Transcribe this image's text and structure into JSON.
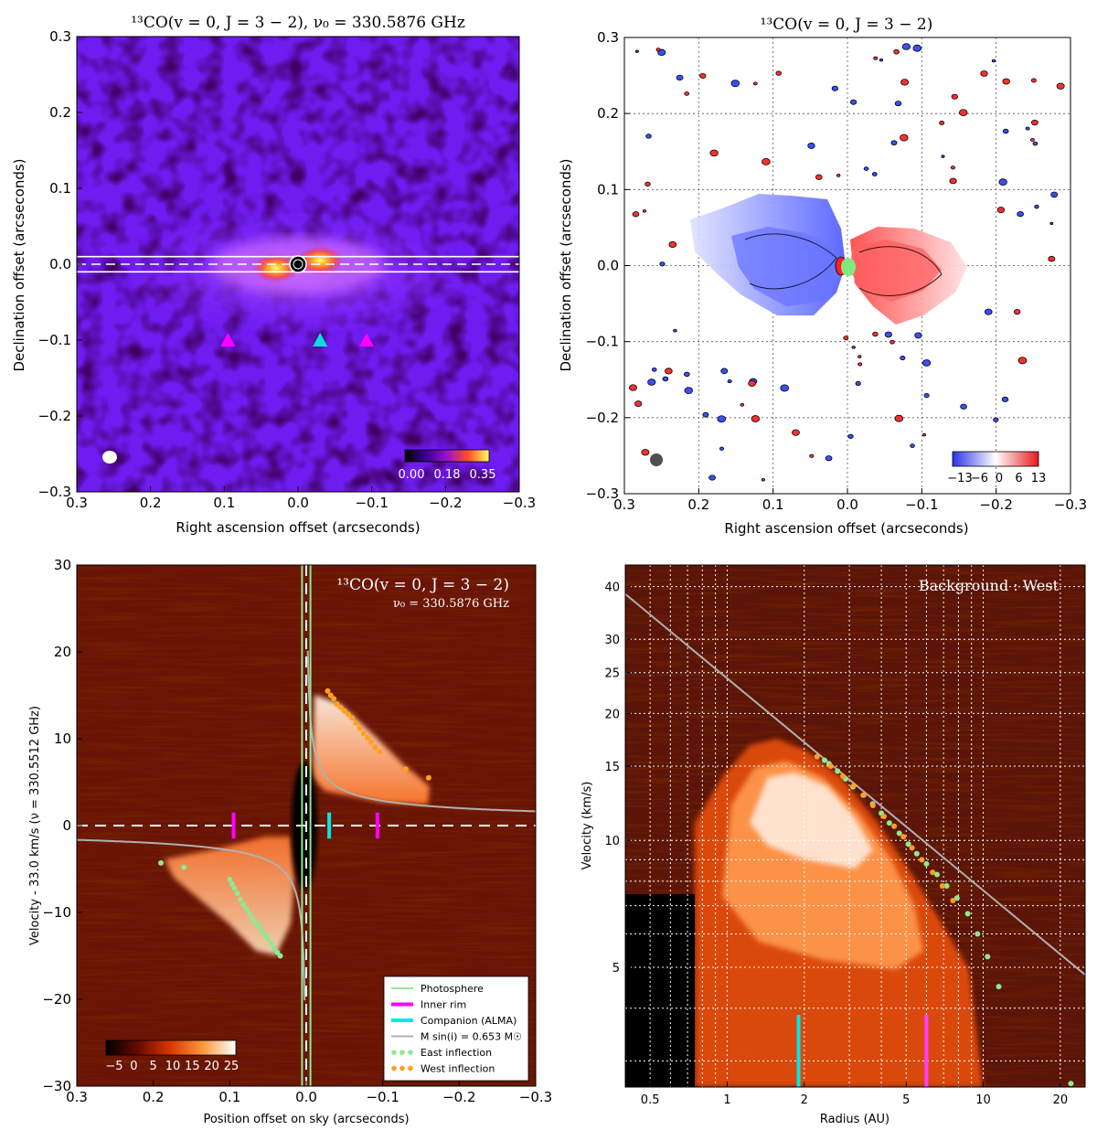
{
  "chart_data": [
    {
      "id": "p1",
      "type": "heatmap",
      "title": "¹³CO(v = 0, J = 3 − 2), ν₀ = 330.5876 GHz",
      "xlabel": "Right ascension offset (arcseconds)",
      "ylabel": "Declination offset (arcseconds)",
      "xlim": [
        0.3,
        -0.3
      ],
      "ylim": [
        -0.3,
        0.3
      ],
      "xticks": [
        "0.3",
        "0.2",
        "0.1",
        "0.0",
        "−0.1",
        "−0.2",
        "−0.3"
      ],
      "yticks": [
        "0.3",
        "0.2",
        "0.1",
        "0.0",
        "−0.1",
        "−0.2",
        "−0.3"
      ],
      "colorbar_ticks": [
        "0.00",
        "0.18",
        "0.35"
      ],
      "colorbar_range": [
        0.0,
        0.35
      ],
      "markers": [
        {
          "type": "inner-rim",
          "color": "#ff00ff",
          "x": 0.095,
          "y": -0.1
        },
        {
          "type": "companion",
          "color": "#00e0e0",
          "x": -0.03,
          "y": -0.1
        },
        {
          "type": "inner-rim",
          "color": "#ff00ff",
          "x": -0.093,
          "y": -0.1
        }
      ],
      "emission_peaks": [
        {
          "x": 0.03,
          "y": -0.005
        },
        {
          "x": -0.03,
          "y": 0.005
        }
      ],
      "slit": {
        "y_center": 0.0,
        "half_width": 0.01
      }
    },
    {
      "id": "p2",
      "type": "heatmap",
      "title": "¹³CO(v = 0, J = 3 − 2)",
      "xlabel": "Right ascension offset (arcseconds)",
      "ylabel": "Declination offset (arcseconds)",
      "xlim": [
        0.3,
        -0.3
      ],
      "ylim": [
        -0.3,
        0.3
      ],
      "xticks": [
        "0.3",
        "0.2",
        "0.1",
        "0.0",
        "−0.1",
        "−0.2",
        "−0.3"
      ],
      "yticks": [
        "0.3",
        "0.2",
        "0.1",
        "0.0",
        "−0.1",
        "−0.2",
        "−0.3"
      ],
      "colorbar_ticks": [
        "−13",
        "−6",
        "0",
        "6",
        "13"
      ],
      "colorbar_range": [
        -13,
        13
      ],
      "grid": true
    },
    {
      "id": "p3",
      "type": "heatmap",
      "title": "¹³CO(v = 0, J = 3 − 2)",
      "subtitle": "ν₀ = 330.5876 GHz",
      "xlabel": "Position offset on sky (arcseconds)",
      "ylabel": "Velocity - 33.0 km/s (ν = 330.5512 GHz)",
      "xlim": [
        0.3,
        -0.3
      ],
      "ylim": [
        -30,
        30
      ],
      "xticks": [
        "0.3",
        "0.2",
        "0.1",
        "0.0",
        "−0.1",
        "−0.2",
        "−0.3"
      ],
      "yticks": [
        "30",
        "20",
        "10",
        "0",
        "−10",
        "−20",
        "−30"
      ],
      "colorbar_ticks": [
        "−5",
        "0",
        "5",
        "10",
        "15",
        "20",
        "25"
      ],
      "colorbar_range": [
        -8,
        27
      ],
      "legend": [
        "Photosphere",
        "Inner rim",
        "Companion (ALMA)",
        "M sin(i) = 0.653 M☉",
        "East inflection",
        "West inflection"
      ],
      "legend_placement": "bottom-right",
      "kepler_k": 0.9,
      "photosphere_x": [
        0.0055,
        -0.0055
      ],
      "inner_rim_x": [
        0.095,
        -0.093
      ],
      "companion_x": -0.03,
      "east_inflection": {
        "x": [
          0.19,
          0.16,
          0.1,
          0.097,
          0.094,
          0.09,
          0.086,
          0.082,
          0.078,
          0.074,
          0.07,
          0.066,
          0.062,
          0.058,
          0.054,
          0.05,
          0.046,
          0.042,
          0.038,
          0.034
        ],
        "y": [
          -4.3,
          -4.8,
          -6.2,
          -6.7,
          -7.2,
          -7.8,
          -8.5,
          -9.1,
          -9.6,
          -10.2,
          -10.8,
          -11.2,
          -11.6,
          -12.2,
          -12.6,
          -13.0,
          -13.6,
          -14.1,
          -14.6,
          -15.0
        ]
      },
      "west_inflection": {
        "x": [
          -0.028,
          -0.032,
          -0.036,
          -0.04,
          -0.045,
          -0.05,
          -0.055,
          -0.06,
          -0.065,
          -0.07,
          -0.075,
          -0.08,
          -0.085,
          -0.09,
          -0.096,
          -0.13,
          -0.16
        ],
        "y": [
          15.5,
          15.0,
          14.6,
          14.0,
          13.6,
          13.2,
          12.8,
          12.4,
          11.8,
          11.2,
          10.6,
          10.1,
          9.6,
          9.0,
          8.5,
          6.5,
          5.5
        ]
      }
    },
    {
      "id": "p4",
      "type": "heatmap",
      "title": "Background : West",
      "xlabel": "Radius (AU)",
      "ylabel": "Velocity (km/s)",
      "xscale": "log",
      "yscale": "log",
      "xlim": [
        0.4,
        25
      ],
      "ylim": [
        2.6,
        45
      ],
      "xticks": [
        0.5,
        1,
        2,
        5,
        10,
        20
      ],
      "yticks": [
        5,
        10,
        15,
        20,
        25,
        30,
        40
      ],
      "grid": true,
      "keplerian_line": {
        "r": [
          0.4,
          25
        ],
        "v": [
          38.4,
          4.8
        ]
      },
      "companion_r": 1.9,
      "inner_rim_r": 6.0,
      "east_inflection": {
        "r": [
          2.4,
          2.5,
          2.7,
          2.9,
          3.1,
          3.4,
          3.7,
          4.0,
          4.3,
          4.7,
          5.1,
          5.5,
          6.0,
          6.6,
          7.2,
          7.9,
          8.7,
          9.5,
          10.4,
          11.5,
          22.0
        ],
        "v": [
          15.5,
          15.2,
          14.6,
          14.0,
          13.4,
          12.8,
          12.2,
          11.6,
          11.0,
          10.4,
          9.8,
          9.3,
          8.8,
          8.3,
          7.8,
          7.3,
          6.7,
          6.0,
          5.3,
          4.5,
          2.65
        ]
      },
      "west_inflection": {
        "r": [
          2.3,
          2.6,
          2.9,
          3.2,
          3.5,
          3.8,
          4.2,
          4.6,
          5.0,
          5.4,
          5.9,
          6.5,
          7.1,
          7.8
        ],
        "v": [
          15.8,
          15.0,
          14.2,
          13.5,
          12.8,
          12.1,
          11.4,
          10.8,
          10.2,
          9.6,
          9.0,
          8.4,
          7.8,
          7.2
        ]
      }
    }
  ]
}
